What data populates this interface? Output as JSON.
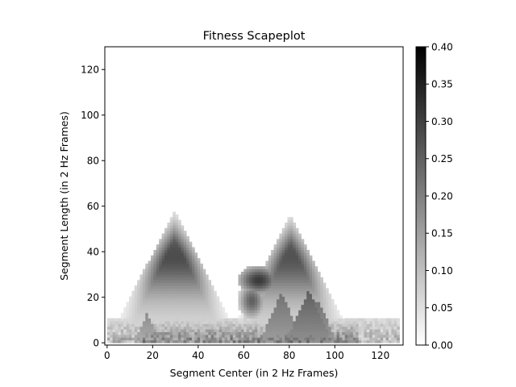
{
  "chart_data": {
    "type": "heatmap",
    "title": "Fitness Scapeplot",
    "xlabel": "Segment Center (in 2 Hz Frames)",
    "ylabel": "Segment Length (in 2 Hz Frames)",
    "xlim": [
      -1,
      130
    ],
    "ylim": [
      -1,
      130
    ],
    "x_ticks": [
      0,
      20,
      40,
      60,
      80,
      100,
      120
    ],
    "y_ticks": [
      0,
      20,
      40,
      60,
      80,
      100,
      120
    ],
    "colormap": "gray_r",
    "colorbar": {
      "vmin": 0.0,
      "vmax": 0.4,
      "ticks": [
        "0.00",
        "0.05",
        "0.10",
        "0.15",
        "0.20",
        "0.25",
        "0.30",
        "0.35",
        "0.40"
      ]
    },
    "regions": [
      {
        "peak_center": 29,
        "start": 0,
        "end": 58,
        "max_length": 61,
        "max_value": 0.3
      },
      {
        "peak_center": 80,
        "start": 52,
        "end": 108,
        "max_length": 60,
        "max_value": 0.28
      },
      {
        "peak_center": 66,
        "max_length": 30,
        "max_value": 0.31
      },
      {
        "peak_center": 88,
        "max_length": 22,
        "max_value": 0.25
      },
      {
        "peak_center": 76,
        "max_length": 21,
        "max_value": 0.22
      }
    ],
    "grid": false,
    "legend": "none"
  }
}
